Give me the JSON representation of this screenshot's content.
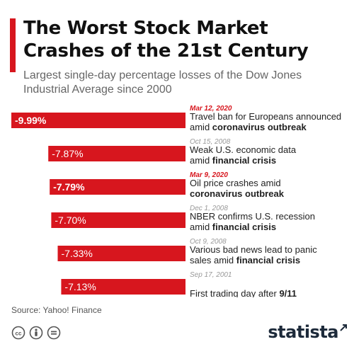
{
  "title": "The Worst Stock Market Crashes of the 21st Century",
  "subtitle": "Largest single-day percentage losses of the Dow Jones Industrial Average since 2000",
  "source": "Source: Yahoo! Finance",
  "brand": "statista",
  "colors": {
    "accent": "#d7161e",
    "date_muted": "#999999",
    "date_highlight": "#d7161e",
    "text": "#222222"
  },
  "icons": [
    "cc-icon",
    "person-icon",
    "equal-icon"
  ],
  "chart_data": {
    "type": "bar",
    "orientation": "horizontal",
    "bars_grow_from": "right",
    "values": [
      -9.99,
      -7.87,
      -7.79,
      -7.7,
      -7.33,
      -7.13
    ],
    "value_labels": [
      "-9.99%",
      "-7.87%",
      "-7.79%",
      "-7.70%",
      "-7.33%",
      "-7.13%"
    ],
    "dates": [
      "Mar 12, 2020",
      "Oct 15, 2008",
      "Mar 9, 2020",
      "Dec 1, 2008",
      "Oct 9, 2008",
      "Sep 17, 2001"
    ],
    "highlighted": [
      true,
      false,
      true,
      false,
      false,
      false
    ],
    "descriptions": [
      {
        "line1": "Travel ban for Europeans announced",
        "line2_prefix": "amid ",
        "line2_bold": "coronavirus outbreak"
      },
      {
        "line1": "Weak U.S. economic data",
        "line2_prefix": "amid ",
        "line2_bold": "financial crisis"
      },
      {
        "line1": "Oil price crashes amid",
        "line2_prefix": "",
        "line2_bold": "coronavirus outbreak"
      },
      {
        "line1": "NBER confirms U.S. recession",
        "line2_prefix": "amid ",
        "line2_bold": "financial crisis"
      },
      {
        "line1": "Various bad news lead to panic",
        "line2_prefix": "sales amid ",
        "line2_bold": "financial crisis"
      },
      {
        "line1": "",
        "line2_prefix": "First trading day after ",
        "line2_bold": "9/11"
      }
    ],
    "xlim": [
      0,
      -10
    ]
  }
}
